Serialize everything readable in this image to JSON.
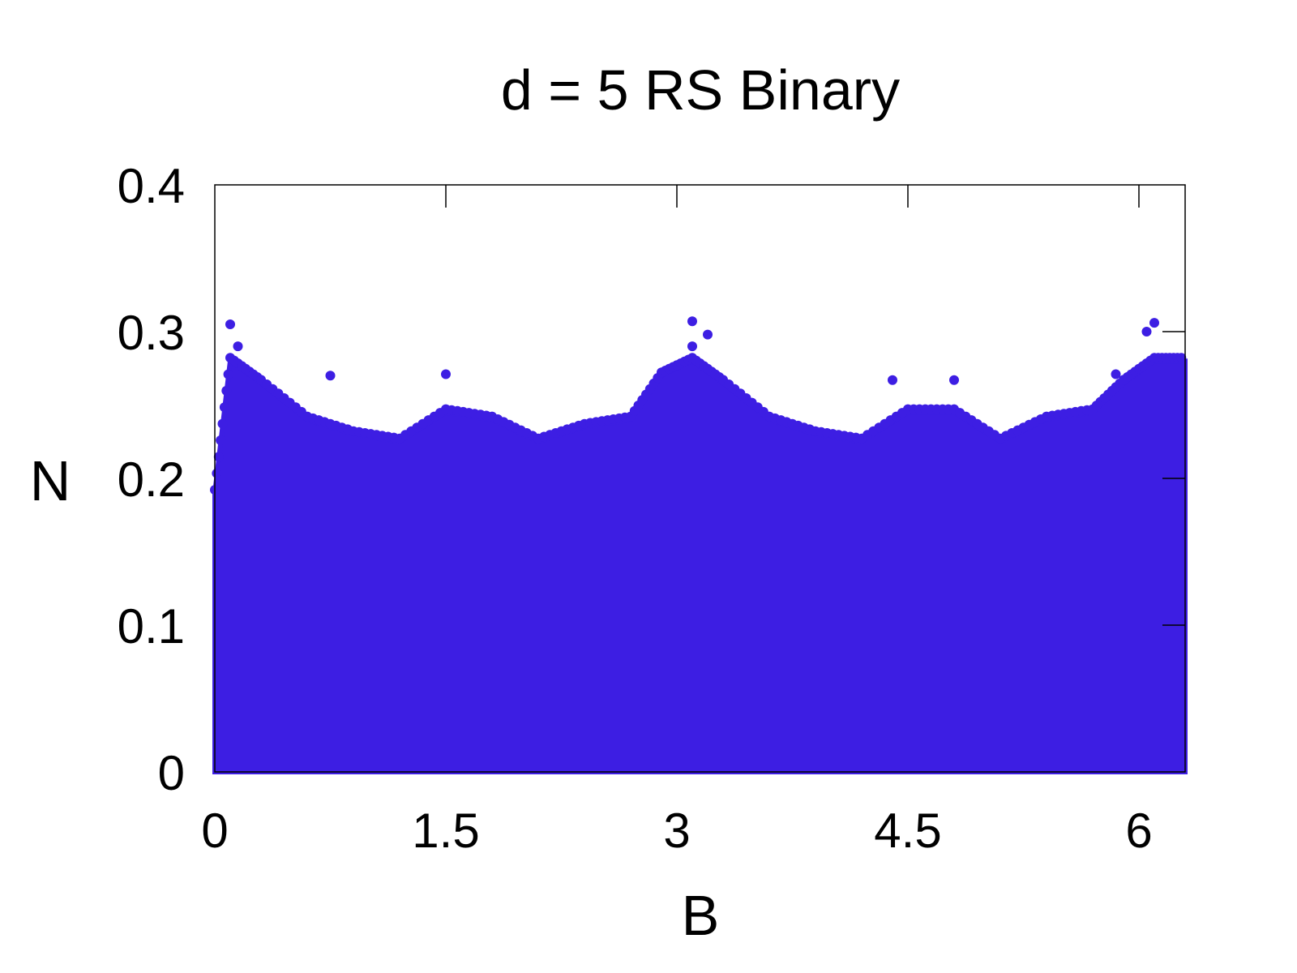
{
  "chart_data": {
    "type": "scatter",
    "title": "d = 5 RS Binary",
    "xlabel": "B",
    "ylabel": "N",
    "xlim": [
      0,
      6.3
    ],
    "ylim": [
      0,
      0.4
    ],
    "xticks": [
      0,
      1.5,
      3,
      4.5,
      6
    ],
    "xtick_labels": [
      "0",
      "1.5",
      "3",
      "4.5",
      "6"
    ],
    "yticks": [
      0,
      0.1,
      0.2,
      0.3,
      0.4
    ],
    "ytick_labels": [
      "0",
      "0.1",
      "0.2",
      "0.3",
      "0.4"
    ],
    "grid": false,
    "legend": "none",
    "marker_color": "#3d1ee3",
    "envelope": {
      "description_of_series": "dense band of points from N=0 up to an upper envelope",
      "B": [
        0.0,
        0.1,
        0.3,
        0.6,
        0.9,
        1.2,
        1.5,
        1.8,
        2.1,
        2.4,
        2.7,
        2.9,
        3.1,
        3.3,
        3.6,
        3.9,
        4.2,
        4.5,
        4.8,
        5.1,
        5.4,
        5.7,
        5.9,
        6.1,
        6.3
      ],
      "N_upper": [
        0.19,
        0.28,
        0.265,
        0.24,
        0.23,
        0.225,
        0.245,
        0.24,
        0.225,
        0.235,
        0.24,
        0.27,
        0.28,
        0.265,
        0.24,
        0.23,
        0.225,
        0.245,
        0.245,
        0.225,
        0.24,
        0.245,
        0.265,
        0.28,
        0.28
      ]
    },
    "outliers": [
      {
        "x": 0.1,
        "y": 0.305
      },
      {
        "x": 0.15,
        "y": 0.29
      },
      {
        "x": 0.75,
        "y": 0.27
      },
      {
        "x": 1.5,
        "y": 0.271
      },
      {
        "x": 3.1,
        "y": 0.307
      },
      {
        "x": 3.2,
        "y": 0.298
      },
      {
        "x": 3.1,
        "y": 0.29
      },
      {
        "x": 4.4,
        "y": 0.267
      },
      {
        "x": 4.8,
        "y": 0.267
      },
      {
        "x": 6.1,
        "y": 0.306
      },
      {
        "x": 6.05,
        "y": 0.3
      },
      {
        "x": 5.85,
        "y": 0.271
      }
    ]
  }
}
